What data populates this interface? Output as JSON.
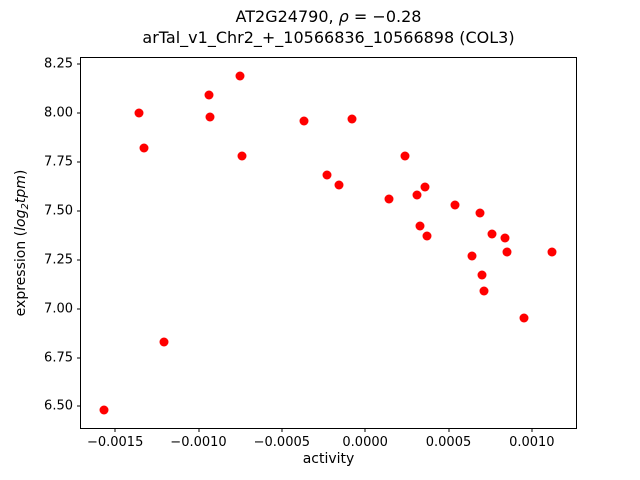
{
  "text": {
    "title_line1_prefix": "AT2G24790, ",
    "title_rho": "ρ",
    "title_line1_rest": " = −0.28",
    "title_line2": "arTal_v1_Chr2_+_10566836_10566898 (COL3)",
    "xlabel": "activity",
    "ylabel_prefix": "expression (",
    "ylabel_func": "log",
    "ylabel_sub": "2",
    "ylabel_var": "tpm",
    "ylabel_suffix": ")"
  },
  "chart_data": {
    "type": "scatter",
    "title": "AT2G24790, ρ = −0.28",
    "subtitle": "arTal_v1_Chr2_+_10566836_10566898 (COL3)",
    "xlabel": "activity",
    "ylabel": "expression (log2tpm)",
    "marker_color": "#ff0000",
    "grid": false,
    "legend": false,
    "xlim": [
      -0.001705,
      0.001265
    ],
    "ylim": [
      6.39,
      8.28
    ],
    "xticks": [
      {
        "v": -0.0015,
        "label": "−0.0015"
      },
      {
        "v": -0.001,
        "label": "−0.0010"
      },
      {
        "v": -0.0005,
        "label": "−0.0005"
      },
      {
        "v": 0.0,
        "label": "0.0000"
      },
      {
        "v": 0.0005,
        "label": "0.0005"
      },
      {
        "v": 0.001,
        "label": "0.0010"
      }
    ],
    "yticks": [
      {
        "v": 6.5,
        "label": "6.50"
      },
      {
        "v": 6.75,
        "label": "6.75"
      },
      {
        "v": 7.0,
        "label": "7.00"
      },
      {
        "v": 7.25,
        "label": "7.25"
      },
      {
        "v": 7.5,
        "label": "7.50"
      },
      {
        "v": 7.75,
        "label": "7.75"
      },
      {
        "v": 8.0,
        "label": "8.00"
      },
      {
        "v": 8.25,
        "label": "8.25"
      }
    ],
    "points": [
      [
        -0.00157,
        6.48
      ],
      [
        -0.00136,
        8.0
      ],
      [
        -0.00133,
        7.82
      ],
      [
        -0.00121,
        6.83
      ],
      [
        -0.00094,
        8.09
      ],
      [
        -0.00093,
        7.98
      ],
      [
        -0.00075,
        8.19
      ],
      [
        -0.00074,
        7.78
      ],
      [
        -0.00037,
        7.96
      ],
      [
        -0.00023,
        7.68
      ],
      [
        -0.00016,
        7.63
      ],
      [
        -8e-05,
        7.97
      ],
      [
        0.00014,
        7.56
      ],
      [
        0.00024,
        7.78
      ],
      [
        0.00031,
        7.58
      ],
      [
        0.00033,
        7.42
      ],
      [
        0.00036,
        7.62
      ],
      [
        0.00037,
        7.37
      ],
      [
        0.00054,
        7.53
      ],
      [
        0.00064,
        7.27
      ],
      [
        0.00069,
        7.49
      ],
      [
        0.0007,
        7.17
      ],
      [
        0.00071,
        7.09
      ],
      [
        0.00076,
        7.38
      ],
      [
        0.00084,
        7.36
      ],
      [
        0.00085,
        7.29
      ],
      [
        0.00095,
        6.95
      ],
      [
        0.00112,
        7.29
      ]
    ]
  }
}
